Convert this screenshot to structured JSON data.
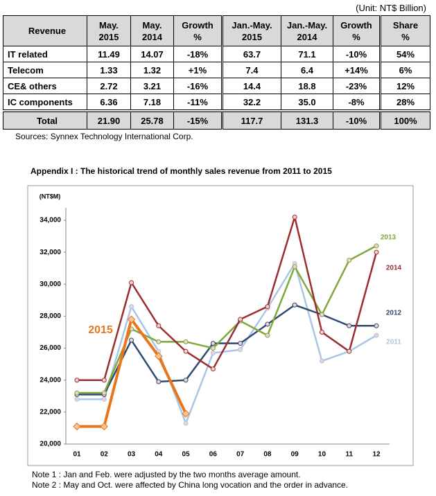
{
  "unit": "(Unit: NT$ Billion)",
  "table": {
    "header": [
      [
        "Revenue"
      ],
      [
        "May.",
        "2015"
      ],
      [
        "May.",
        "2014"
      ],
      [
        "Growth",
        "%"
      ],
      [
        "Jan.-May.",
        "2015"
      ],
      [
        "Jan.-May.",
        "2014"
      ],
      [
        "Growth",
        "%"
      ],
      [
        "Share",
        "%"
      ]
    ],
    "rows": [
      [
        "IT related",
        "11.49",
        "14.07",
        "-18%",
        "63.7",
        "71.1",
        "-10%",
        "54%"
      ],
      [
        "Telecom",
        "1.33",
        "1.32",
        "+1%",
        "7.4",
        "6.4",
        "+14%",
        "6%"
      ],
      [
        "CE& others",
        "2.72",
        "3.21",
        "-16%",
        "14.4",
        "18.8",
        "-23%",
        "12%"
      ],
      [
        "IC components",
        "6.36",
        "7.18",
        "-11%",
        "32.2",
        "35.0",
        "-8%",
        "28%"
      ]
    ],
    "total": [
      "Total",
      "21.90",
      "25.78",
      "-15%",
      "117.7",
      "131.3",
      "-10%",
      "100%"
    ]
  },
  "sources": "Sources: Synnex Technology International Corp.",
  "chart_data": {
    "type": "line",
    "title": "Appendix I : The historical trend of monthly sales revenue from 2011 to 2015",
    "y_label": "(NT$M)",
    "categories": [
      "01",
      "02",
      "03",
      "04",
      "05",
      "06",
      "07",
      "08",
      "09",
      "10",
      "11",
      "12"
    ],
    "ylim": [
      20000,
      34000
    ],
    "yticks": [
      {
        "value": 20000,
        "label": "20,000"
      },
      {
        "value": 22000,
        "label": "22,000"
      },
      {
        "value": 24000,
        "label": "24,000"
      },
      {
        "value": 26000,
        "label": "26,000"
      },
      {
        "value": 28000,
        "label": "28,000"
      },
      {
        "value": 30000,
        "label": "30,000"
      },
      {
        "value": 32000,
        "label": "32,000"
      },
      {
        "value": 34000,
        "label": "34,000"
      }
    ],
    "grid": false,
    "series": [
      {
        "name": "2011",
        "color": "#a9c6e6",
        "values": [
          22800,
          22800,
          28600,
          25800,
          21300,
          25700,
          25900,
          28500,
          31300,
          25200,
          25800,
          26800
        ]
      },
      {
        "name": "2012",
        "color": "#2f4a6e",
        "values": [
          23100,
          23100,
          26500,
          23900,
          24000,
          26300,
          26300,
          27500,
          28700,
          28100,
          27400,
          27400
        ]
      },
      {
        "name": "2013",
        "color": "#7fa83a",
        "values": [
          23200,
          23200,
          27200,
          26400,
          26400,
          26000,
          27700,
          26800,
          31100,
          28100,
          31500,
          32400
        ]
      },
      {
        "name": "2014",
        "color": "#9b2d30",
        "values": [
          24000,
          24000,
          30100,
          27400,
          25800,
          24700,
          27800,
          28600,
          34200,
          27000,
          25800,
          32000
        ]
      },
      {
        "name": "2015",
        "color": "#e8761c",
        "values": [
          21100,
          21100,
          27800,
          25500,
          21900,
          null,
          null,
          null,
          null,
          null,
          null,
          null
        ]
      }
    ]
  },
  "notes": [
    "Note 1 : Jan and Feb. were adjusted by the two months average amount.",
    "Note 2 : May and Oct. were affected by China long vocation and the order in advance."
  ]
}
